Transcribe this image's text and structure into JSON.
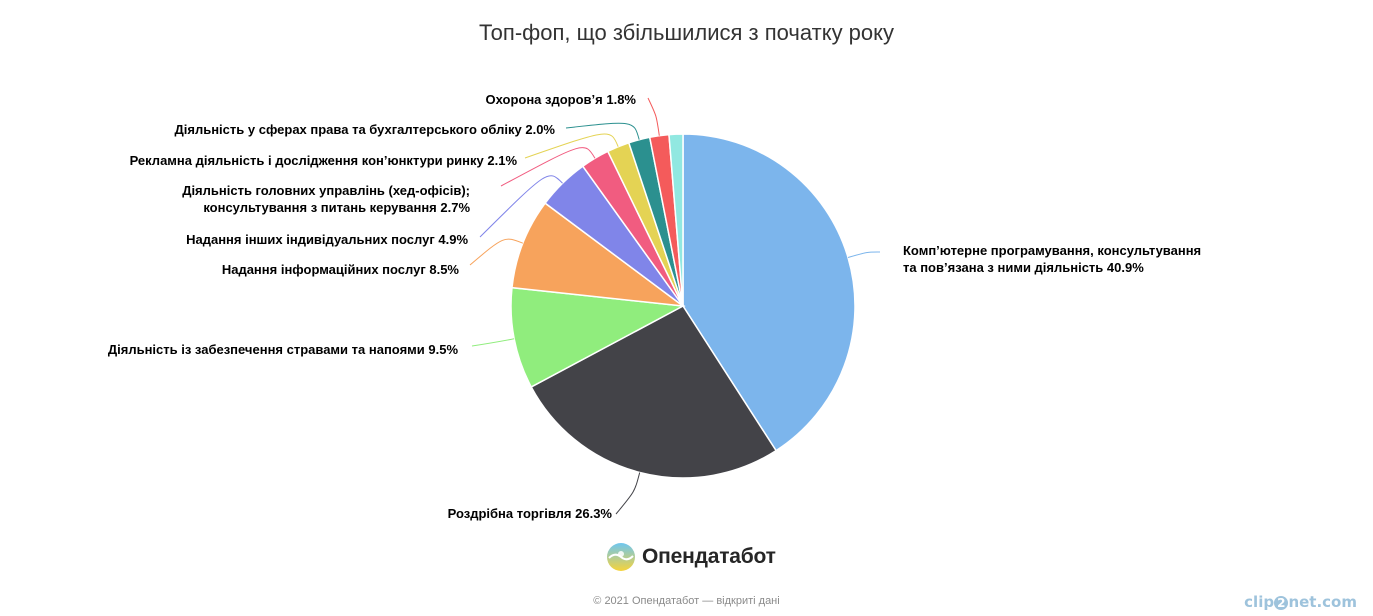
{
  "chart_data": {
    "type": "pie",
    "title": "Топ-фоп, що збільшилися з початку року",
    "slices": [
      {
        "label": [
          "Комп’ютерне програмування, консультування",
          "та пов’язана з ними діяльність 40.9%"
        ],
        "value": 40.9,
        "color": "#7cb5ec"
      },
      {
        "label": [
          "Роздрібна торгівля 26.3%"
        ],
        "value": 26.3,
        "color": "#434348"
      },
      {
        "label": [
          "Діяльність із забезпечення стравами та напоями 9.5%"
        ],
        "value": 9.5,
        "color": "#90ed7d"
      },
      {
        "label": [
          "Надання інформаційних послуг 8.5%"
        ],
        "value": 8.5,
        "color": "#f7a35c"
      },
      {
        "label": [
          "Надання інших індивідуальних послуг 4.9%"
        ],
        "value": 4.9,
        "color": "#8085e9"
      },
      {
        "label": [
          "Діяльність головних управлінь (хед-офісів);",
          "консультування з питань керування 2.7%"
        ],
        "value": 2.7,
        "color": "#f15c80"
      },
      {
        "label": [
          "Рекламна діяльність і дослідження кон’юнктури ринку 2.1%"
        ],
        "value": 2.1,
        "color": "#e4d354"
      },
      {
        "label": [
          "Діяльність у сферах права та бухгалтерського обліку 2.0%"
        ],
        "value": 2.0,
        "color": "#2b908f"
      },
      {
        "label": [
          "Охорона здоров’я 1.8%"
        ],
        "value": 1.8,
        "color": "#f45b5b"
      },
      {
        "label": [
          ""
        ],
        "value": 1.3,
        "color": "#91e8e1"
      }
    ]
  },
  "logo": {
    "name": "Опендатабот",
    "icon": "sun-wave-logo-icon"
  },
  "footer": {
    "text": "© 2021 Опендатабот — відкриті дані"
  },
  "watermark": {
    "text_a": "clip",
    "text_b": "2",
    "text_c": "net.com"
  }
}
